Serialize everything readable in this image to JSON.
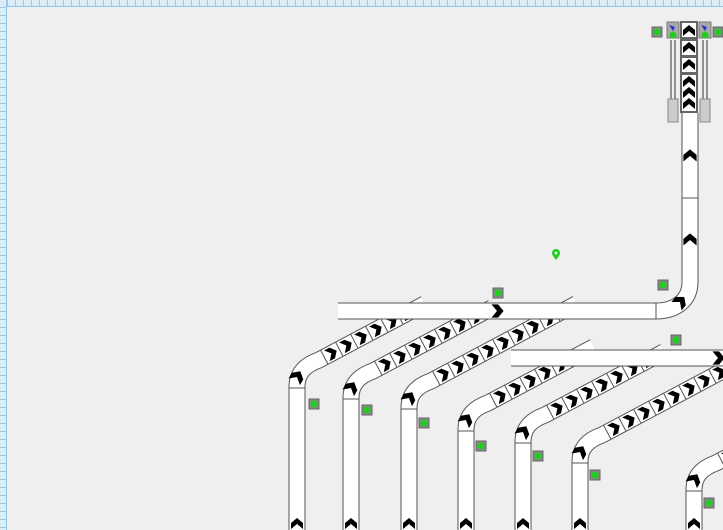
{
  "colors": {
    "background": "#efefef",
    "ruler": "#dcecf7",
    "belt_fill": "#ffffff",
    "belt_outline": "#555555",
    "chevron": "#000000",
    "sensor_green": "#22cc22",
    "sensor_box": "#888888",
    "pin": "#22cc22",
    "indicator_blue": "#2233cc"
  },
  "icons": {
    "direction": "chevron-arrow-icon",
    "sensor": "photo-eye-sensor-icon",
    "marker": "map-pin-icon"
  }
}
